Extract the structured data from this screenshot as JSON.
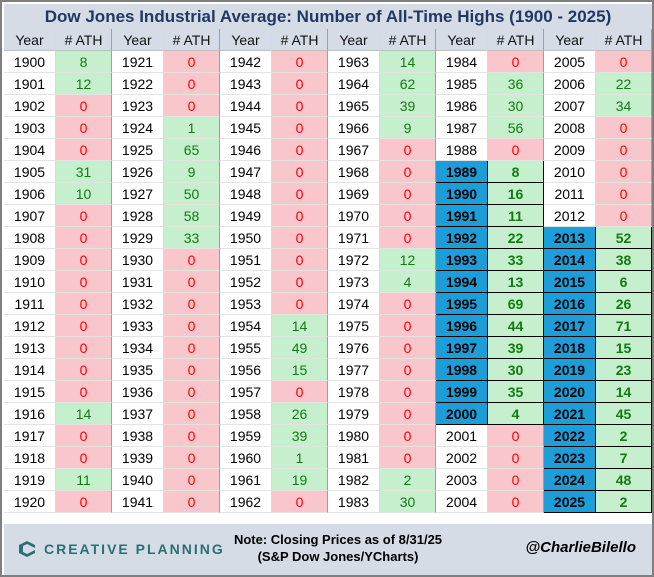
{
  "title": "Dow Jones Industrial Average: Number of All-Time Highs (1900 - 2025)",
  "headers": {
    "year": "Year",
    "ath": "# ATH"
  },
  "colors": {
    "red_bg": "#f9c6cc",
    "red_text": "#ff0000",
    "green_bg": "#c6efce",
    "green_text": "#107c10",
    "blue_highlight": "#1d9ed9",
    "header_bg": "#d6dce5"
  },
  "columns": [
    {
      "rows": [
        [
          "1900",
          "8"
        ],
        [
          "1901",
          "12"
        ],
        [
          "1902",
          "0"
        ],
        [
          "1903",
          "0"
        ],
        [
          "1904",
          "0"
        ],
        [
          "1905",
          "31"
        ],
        [
          "1906",
          "10"
        ],
        [
          "1907",
          "0"
        ],
        [
          "1908",
          "0"
        ],
        [
          "1909",
          "0"
        ],
        [
          "1910",
          "0"
        ],
        [
          "1911",
          "0"
        ],
        [
          "1912",
          "0"
        ],
        [
          "1913",
          "0"
        ],
        [
          "1914",
          "0"
        ],
        [
          "1915",
          "0"
        ],
        [
          "1916",
          "14"
        ],
        [
          "1917",
          "0"
        ],
        [
          "1918",
          "0"
        ],
        [
          "1919",
          "11"
        ],
        [
          "1920",
          "0"
        ]
      ]
    },
    {
      "rows": [
        [
          "1921",
          "0"
        ],
        [
          "1922",
          "0"
        ],
        [
          "1923",
          "0"
        ],
        [
          "1924",
          "1"
        ],
        [
          "1925",
          "65"
        ],
        [
          "1926",
          "9"
        ],
        [
          "1927",
          "50"
        ],
        [
          "1928",
          "58"
        ],
        [
          "1929",
          "33"
        ],
        [
          "1930",
          "0"
        ],
        [
          "1931",
          "0"
        ],
        [
          "1932",
          "0"
        ],
        [
          "1933",
          "0"
        ],
        [
          "1934",
          "0"
        ],
        [
          "1935",
          "0"
        ],
        [
          "1936",
          "0"
        ],
        [
          "1937",
          "0"
        ],
        [
          "1938",
          "0"
        ],
        [
          "1939",
          "0"
        ],
        [
          "1940",
          "0"
        ],
        [
          "1941",
          "0"
        ]
      ]
    },
    {
      "rows": [
        [
          "1942",
          "0"
        ],
        [
          "1943",
          "0"
        ],
        [
          "1944",
          "0"
        ],
        [
          "1945",
          "0"
        ],
        [
          "1946",
          "0"
        ],
        [
          "1947",
          "0"
        ],
        [
          "1948",
          "0"
        ],
        [
          "1949",
          "0"
        ],
        [
          "1950",
          "0"
        ],
        [
          "1951",
          "0"
        ],
        [
          "1952",
          "0"
        ],
        [
          "1953",
          "0"
        ],
        [
          "1954",
          "14"
        ],
        [
          "1955",
          "49"
        ],
        [
          "1956",
          "15"
        ],
        [
          "1957",
          "0"
        ],
        [
          "1958",
          "26"
        ],
        [
          "1959",
          "39"
        ],
        [
          "1960",
          "1"
        ],
        [
          "1961",
          "19"
        ],
        [
          "1962",
          "0"
        ]
      ]
    },
    {
      "rows": [
        [
          "1963",
          "14"
        ],
        [
          "1964",
          "62"
        ],
        [
          "1965",
          "39"
        ],
        [
          "1966",
          "9"
        ],
        [
          "1967",
          "0"
        ],
        [
          "1968",
          "0"
        ],
        [
          "1969",
          "0"
        ],
        [
          "1970",
          "0"
        ],
        [
          "1971",
          "0"
        ],
        [
          "1972",
          "12"
        ],
        [
          "1973",
          "4"
        ],
        [
          "1974",
          "0"
        ],
        [
          "1975",
          "0"
        ],
        [
          "1976",
          "0"
        ],
        [
          "1977",
          "0"
        ],
        [
          "1978",
          "0"
        ],
        [
          "1979",
          "0"
        ],
        [
          "1980",
          "0"
        ],
        [
          "1981",
          "0"
        ],
        [
          "1982",
          "2"
        ],
        [
          "1983",
          "30"
        ]
      ]
    },
    {
      "rows": [
        [
          "1984",
          "0"
        ],
        [
          "1985",
          "36"
        ],
        [
          "1986",
          "30"
        ],
        [
          "1987",
          "56"
        ],
        [
          "1988",
          "0"
        ],
        [
          "1989",
          "8"
        ],
        [
          "1990",
          "16"
        ],
        [
          "1991",
          "11"
        ],
        [
          "1992",
          "22"
        ],
        [
          "1993",
          "33"
        ],
        [
          "1994",
          "13"
        ],
        [
          "1995",
          "69"
        ],
        [
          "1996",
          "44"
        ],
        [
          "1997",
          "39"
        ],
        [
          "1998",
          "30"
        ],
        [
          "1999",
          "35"
        ],
        [
          "2000",
          "4"
        ],
        [
          "2001",
          "0"
        ],
        [
          "2002",
          "0"
        ],
        [
          "2003",
          "0"
        ],
        [
          "2004",
          "0"
        ]
      ]
    },
    {
      "rows": [
        [
          "2005",
          "0"
        ],
        [
          "2006",
          "22"
        ],
        [
          "2007",
          "34"
        ],
        [
          "2008",
          "0"
        ],
        [
          "2009",
          "0"
        ],
        [
          "2010",
          "0"
        ],
        [
          "2011",
          "0"
        ],
        [
          "2012",
          "0"
        ],
        [
          "2013",
          "52"
        ],
        [
          "2014",
          "38"
        ],
        [
          "2015",
          "6"
        ],
        [
          "2016",
          "26"
        ],
        [
          "2017",
          "71"
        ],
        [
          "2018",
          "15"
        ],
        [
          "2019",
          "23"
        ],
        [
          "2020",
          "14"
        ],
        [
          "2021",
          "45"
        ],
        [
          "2022",
          "2"
        ],
        [
          "2023",
          "7"
        ],
        [
          "2024",
          "48"
        ],
        [
          "2025",
          "2"
        ]
      ]
    }
  ],
  "footer": {
    "logo_text": "CREATIVE PLANNING",
    "logo_icon": "creative-planning-c-mark",
    "note_line1": "Note: Closing Prices as of 8/31/25",
    "note_line2": "(S&P Dow Jones/YCharts)",
    "handle": "@CharlieBilello"
  }
}
